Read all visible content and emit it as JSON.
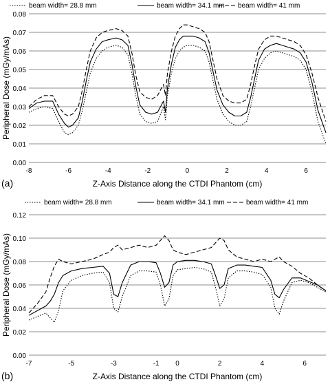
{
  "chart_data": [
    {
      "panel_label": "(a)",
      "type": "line",
      "xlabel": "Z-Axis Distance along the CTDI Phantom (cm)",
      "ylabel": "Peripheral Dose (mGy/mAs)",
      "xlim": [
        -8,
        7
      ],
      "ylim": [
        0,
        0.08
      ],
      "x_ticks": [
        "-8",
        "-6",
        "-4",
        "-2",
        "0",
        "2",
        "4",
        "6"
      ],
      "y_ticks": [
        "0.00",
        "0.01",
        "0.02",
        "0.03",
        "0.04",
        "0.05",
        "0.06",
        "0.07",
        "0.08"
      ],
      "grid": "horizontal",
      "legend": "top",
      "series": [
        {
          "name": "beam width= 28.8 mm",
          "style": "dotted",
          "x": [
            -8.0,
            -7.6,
            -7.2,
            -6.8,
            -6.5,
            -6.2,
            -6.0,
            -5.8,
            -5.5,
            -5.3,
            -5.1,
            -4.9,
            -4.6,
            -4.3,
            -4.0,
            -3.6,
            -3.3,
            -3.0,
            -2.8,
            -2.6,
            -2.4,
            -2.1,
            -1.8,
            -1.5,
            -1.2,
            -1.1,
            -1.0,
            -0.8,
            -0.6,
            -0.4,
            -0.2,
            0.0,
            0.3,
            0.6,
            0.9,
            1.1,
            1.3,
            1.5,
            1.8,
            2.1,
            2.4,
            2.7,
            3.0,
            3.2,
            3.4,
            3.6,
            3.9,
            4.2,
            4.5,
            4.8,
            5.1,
            5.4,
            5.7,
            6.0,
            6.3,
            6.6,
            7.0
          ],
          "values": [
            0.027,
            0.029,
            0.03,
            0.029,
            0.022,
            0.016,
            0.015,
            0.016,
            0.02,
            0.028,
            0.038,
            0.048,
            0.056,
            0.06,
            0.062,
            0.063,
            0.062,
            0.058,
            0.048,
            0.036,
            0.026,
            0.022,
            0.021,
            0.022,
            0.03,
            0.023,
            0.036,
            0.048,
            0.056,
            0.06,
            0.062,
            0.063,
            0.063,
            0.062,
            0.06,
            0.054,
            0.044,
            0.034,
            0.026,
            0.022,
            0.02,
            0.02,
            0.022,
            0.03,
            0.04,
            0.05,
            0.056,
            0.059,
            0.06,
            0.059,
            0.058,
            0.057,
            0.055,
            0.05,
            0.038,
            0.022,
            0.01
          ]
        },
        {
          "name": "beam width= 34.1 mm",
          "style": "solid",
          "x": [
            -8.0,
            -7.6,
            -7.2,
            -6.8,
            -6.5,
            -6.2,
            -6.0,
            -5.8,
            -5.5,
            -5.3,
            -5.1,
            -4.9,
            -4.6,
            -4.3,
            -4.0,
            -3.6,
            -3.3,
            -3.0,
            -2.8,
            -2.6,
            -2.4,
            -2.1,
            -1.8,
            -1.5,
            -1.2,
            -1.1,
            -1.0,
            -0.8,
            -0.6,
            -0.4,
            -0.2,
            0.0,
            0.3,
            0.6,
            0.9,
            1.1,
            1.3,
            1.5,
            1.8,
            2.1,
            2.4,
            2.7,
            3.0,
            3.2,
            3.4,
            3.6,
            3.9,
            4.2,
            4.5,
            4.8,
            5.1,
            5.4,
            5.7,
            6.0,
            6.3,
            6.6,
            7.0
          ],
          "values": [
            0.029,
            0.032,
            0.033,
            0.033,
            0.026,
            0.021,
            0.019,
            0.02,
            0.024,
            0.033,
            0.044,
            0.054,
            0.061,
            0.065,
            0.066,
            0.067,
            0.066,
            0.063,
            0.053,
            0.041,
            0.031,
            0.027,
            0.026,
            0.027,
            0.033,
            0.027,
            0.04,
            0.053,
            0.062,
            0.066,
            0.068,
            0.068,
            0.068,
            0.067,
            0.065,
            0.059,
            0.049,
            0.039,
            0.031,
            0.027,
            0.025,
            0.025,
            0.027,
            0.035,
            0.045,
            0.055,
            0.061,
            0.063,
            0.064,
            0.063,
            0.062,
            0.061,
            0.059,
            0.054,
            0.043,
            0.028,
            0.016
          ]
        },
        {
          "name": "beam width= 41 mm",
          "style": "dashed",
          "x": [
            -8.0,
            -7.6,
            -7.2,
            -6.8,
            -6.5,
            -6.2,
            -6.0,
            -5.8,
            -5.5,
            -5.3,
            -5.1,
            -4.9,
            -4.6,
            -4.3,
            -4.0,
            -3.6,
            -3.3,
            -3.0,
            -2.8,
            -2.6,
            -2.4,
            -2.1,
            -1.8,
            -1.5,
            -1.2,
            -1.1,
            -1.0,
            -0.8,
            -0.6,
            -0.4,
            -0.2,
            0.0,
            0.3,
            0.6,
            0.9,
            1.1,
            1.3,
            1.5,
            1.8,
            2.1,
            2.4,
            2.7,
            3.0,
            3.2,
            3.4,
            3.6,
            3.9,
            4.2,
            4.5,
            4.8,
            5.1,
            5.4,
            5.7,
            6.0,
            6.3,
            6.6,
            7.0
          ],
          "values": [
            0.03,
            0.034,
            0.036,
            0.036,
            0.03,
            0.026,
            0.025,
            0.026,
            0.03,
            0.039,
            0.05,
            0.06,
            0.067,
            0.07,
            0.071,
            0.072,
            0.071,
            0.068,
            0.059,
            0.047,
            0.038,
            0.035,
            0.034,
            0.036,
            0.042,
            0.036,
            0.048,
            0.06,
            0.068,
            0.072,
            0.074,
            0.074,
            0.073,
            0.072,
            0.07,
            0.065,
            0.055,
            0.045,
            0.036,
            0.033,
            0.032,
            0.032,
            0.034,
            0.042,
            0.052,
            0.061,
            0.066,
            0.068,
            0.068,
            0.067,
            0.066,
            0.065,
            0.063,
            0.058,
            0.048,
            0.035,
            0.022
          ]
        }
      ]
    },
    {
      "panel_label": "(b)",
      "type": "line",
      "xlabel": "Z-Axis Distance along the CTDI Phantom (cm)",
      "ylabel": "Peripheral Dose (mGy/mAs)",
      "xlim": [
        -7,
        7
      ],
      "ylim": [
        0,
        0.12
      ],
      "x_ticks": [
        "-7",
        "-5",
        "-3",
        "-1",
        "0",
        "2",
        "4",
        "6"
      ],
      "y_ticks": [
        "0.00",
        "0.02",
        "0.04",
        "0.06",
        "0.08",
        "0.10",
        "0.12"
      ],
      "grid": "horizontal",
      "legend": "top",
      "series": [
        {
          "name": "beam width= 28.8 mm",
          "style": "dotted",
          "x": [
            -7.0,
            -6.6,
            -6.2,
            -6.0,
            -5.8,
            -5.6,
            -5.4,
            -5.0,
            -4.5,
            -4.0,
            -3.5,
            -3.2,
            -3.0,
            -2.8,
            -2.6,
            -2.2,
            -1.8,
            -1.4,
            -1.0,
            -0.8,
            -0.6,
            -0.4,
            -0.2,
            0.0,
            0.4,
            0.8,
            1.2,
            1.6,
            1.8,
            2.0,
            2.2,
            2.4,
            2.8,
            3.2,
            3.6,
            4.0,
            4.4,
            4.6,
            4.8,
            5.0,
            5.4,
            5.8,
            6.2,
            6.6,
            7.0
          ],
          "values": [
            0.03,
            0.033,
            0.036,
            0.032,
            0.028,
            0.038,
            0.055,
            0.064,
            0.068,
            0.07,
            0.071,
            0.062,
            0.04,
            0.037,
            0.05,
            0.068,
            0.072,
            0.072,
            0.071,
            0.06,
            0.042,
            0.048,
            0.068,
            0.073,
            0.074,
            0.075,
            0.074,
            0.071,
            0.058,
            0.042,
            0.048,
            0.066,
            0.072,
            0.072,
            0.071,
            0.069,
            0.058,
            0.04,
            0.035,
            0.046,
            0.062,
            0.064,
            0.062,
            0.058,
            0.054
          ]
        },
        {
          "name": "beam width= 34.1 mm",
          "style": "solid",
          "x": [
            -7.0,
            -6.6,
            -6.2,
            -6.0,
            -5.8,
            -5.6,
            -5.4,
            -5.0,
            -4.5,
            -4.0,
            -3.5,
            -3.2,
            -3.0,
            -2.8,
            -2.6,
            -2.2,
            -1.8,
            -1.4,
            -1.0,
            -0.8,
            -0.6,
            -0.4,
            -0.2,
            0.0,
            0.4,
            0.8,
            1.2,
            1.6,
            1.8,
            2.0,
            2.2,
            2.4,
            2.8,
            3.2,
            3.6,
            4.0,
            4.4,
            4.6,
            4.8,
            5.0,
            5.4,
            5.8,
            6.2,
            6.6,
            7.0
          ],
          "values": [
            0.034,
            0.038,
            0.042,
            0.046,
            0.052,
            0.062,
            0.068,
            0.072,
            0.074,
            0.075,
            0.076,
            0.07,
            0.052,
            0.05,
            0.062,
            0.077,
            0.08,
            0.08,
            0.079,
            0.07,
            0.058,
            0.062,
            0.077,
            0.08,
            0.081,
            0.081,
            0.08,
            0.078,
            0.068,
            0.057,
            0.06,
            0.074,
            0.077,
            0.077,
            0.076,
            0.075,
            0.064,
            0.052,
            0.049,
            0.056,
            0.066,
            0.066,
            0.063,
            0.06,
            0.055
          ]
        },
        {
          "name": "beam width= 41 mm",
          "style": "dashed",
          "x": [
            -7.0,
            -6.6,
            -6.2,
            -6.0,
            -5.8,
            -5.6,
            -5.4,
            -5.0,
            -4.5,
            -4.0,
            -3.5,
            -3.2,
            -3.0,
            -2.8,
            -2.6,
            -2.2,
            -1.8,
            -1.4,
            -1.0,
            -0.8,
            -0.6,
            -0.4,
            -0.2,
            0.0,
            0.4,
            0.8,
            1.2,
            1.6,
            1.8,
            2.0,
            2.2,
            2.4,
            2.8,
            3.2,
            3.6,
            4.0,
            4.4,
            4.6,
            4.8,
            5.0,
            5.4,
            5.8,
            6.2,
            6.6,
            7.0
          ],
          "values": [
            0.036,
            0.044,
            0.054,
            0.066,
            0.076,
            0.082,
            0.08,
            0.078,
            0.08,
            0.082,
            0.086,
            0.088,
            0.092,
            0.094,
            0.09,
            0.092,
            0.094,
            0.092,
            0.094,
            0.098,
            0.102,
            0.098,
            0.09,
            0.088,
            0.086,
            0.088,
            0.09,
            0.092,
            0.096,
            0.1,
            0.098,
            0.09,
            0.084,
            0.082,
            0.08,
            0.082,
            0.08,
            0.082,
            0.084,
            0.08,
            0.076,
            0.07,
            0.066,
            0.06,
            0.055
          ]
        }
      ]
    }
  ]
}
